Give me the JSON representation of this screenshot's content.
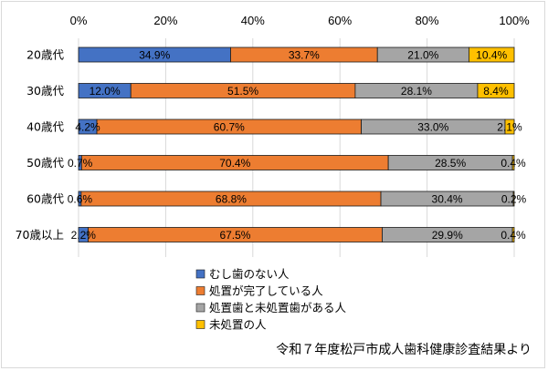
{
  "chart_data": {
    "type": "bar",
    "orientation": "horizontal",
    "stacked": "percent",
    "categories": [
      "20歳代",
      "30歳代",
      "40歳代",
      "50歳代",
      "60歳代",
      "70歳以上"
    ],
    "series": [
      {
        "name": "むし歯のない人",
        "color": "#4472c4",
        "values": [
          34.9,
          12.0,
          4.2,
          0.7,
          0.6,
          2.2
        ],
        "labels": [
          "34.9%",
          "12.0%",
          "4.2%",
          "0.7%",
          "0.6%",
          "2.2%"
        ]
      },
      {
        "name": "処置が完了している人",
        "color": "#ed7d31",
        "values": [
          33.7,
          51.5,
          60.7,
          70.4,
          68.8,
          67.5
        ],
        "labels": [
          "33.7%",
          "51.5%",
          "60.7%",
          "70.4%",
          "68.8%",
          "67.5%"
        ]
      },
      {
        "name": "処置歯と未処置歯がある人",
        "color": "#a5a5a5",
        "values": [
          21.0,
          28.1,
          33.0,
          28.5,
          30.4,
          29.9
        ],
        "labels": [
          "21.0%",
          "28.1%",
          "33.0%",
          "28.5%",
          "30.4%",
          "29.9%"
        ]
      },
      {
        "name": "未処置の人",
        "color": "#ffc000",
        "values": [
          10.4,
          8.4,
          2.1,
          0.4,
          0.2,
          0.4
        ],
        "labels": [
          "10.4%",
          "8.4%",
          "2.1%",
          "0.4%",
          "0.2%",
          "0.4%"
        ]
      }
    ],
    "xlim": [
      0,
      100
    ],
    "x_ticks": [
      "0%",
      "20%",
      "40%",
      "60%",
      "80%",
      "100%"
    ],
    "x_axis_position": "top",
    "grid": true,
    "legend_position": "bottom"
  },
  "source_note": "令和７年度松戸市成人歯科健康診査結果より"
}
